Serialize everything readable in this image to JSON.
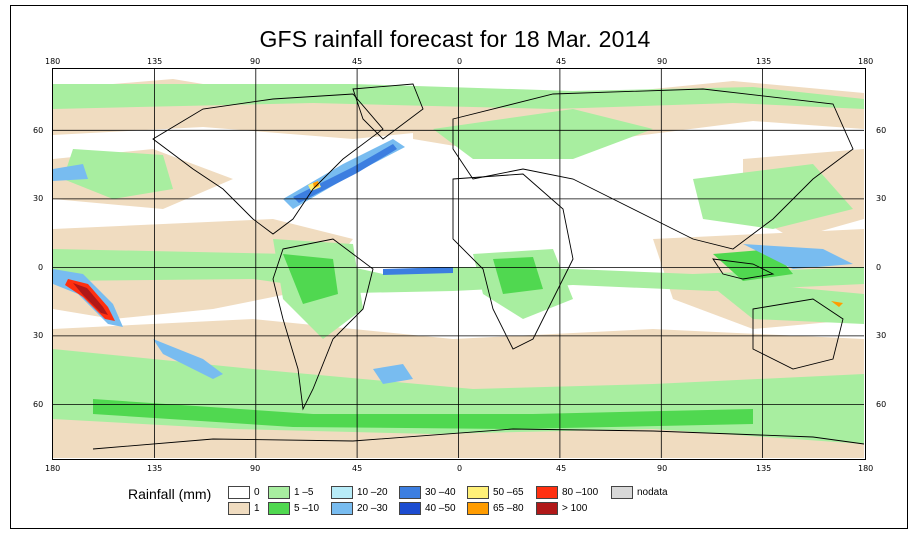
{
  "title": "GFS rainfall forecast for 18 Mar. 2014",
  "axes": {
    "top_lon": [
      "180",
      "135",
      "90",
      "45",
      "0",
      "45",
      "90",
      "135",
      "180"
    ],
    "bottom_lon": [
      "180",
      "135",
      "90",
      "45",
      "0",
      "45",
      "90",
      "135",
      "180"
    ],
    "left_lat": [
      "60",
      "30",
      "0",
      "30",
      "60"
    ],
    "right_lat": [
      "60",
      "30",
      "0",
      "30",
      "60"
    ]
  },
  "legend": {
    "label": "Rainfall (mm)",
    "items": [
      {
        "label": "0",
        "color": "#ffffff"
      },
      {
        "label": "1",
        "color": "#f0dcc0"
      },
      {
        "label": "1 –5",
        "color": "#a8eea0"
      },
      {
        "label": "5 –10",
        "color": "#50d850"
      },
      {
        "label": "10 –20",
        "color": "#b8ecf8"
      },
      {
        "label": "20 –30",
        "color": "#78bcf0"
      },
      {
        "label": "30 –40",
        "color": "#3c7ee0"
      },
      {
        "label": "40 –50",
        "color": "#1c4cd0"
      },
      {
        "label": "50 –65",
        "color": "#fff078"
      },
      {
        "label": "65 –80",
        "color": "#ff9c00"
      },
      {
        "label": "80 –100",
        "color": "#ff3010"
      },
      {
        "label": "> 100",
        "color": "#b01818"
      },
      {
        "label": "nodata",
        "color": "#d8d8d8"
      }
    ]
  }
}
